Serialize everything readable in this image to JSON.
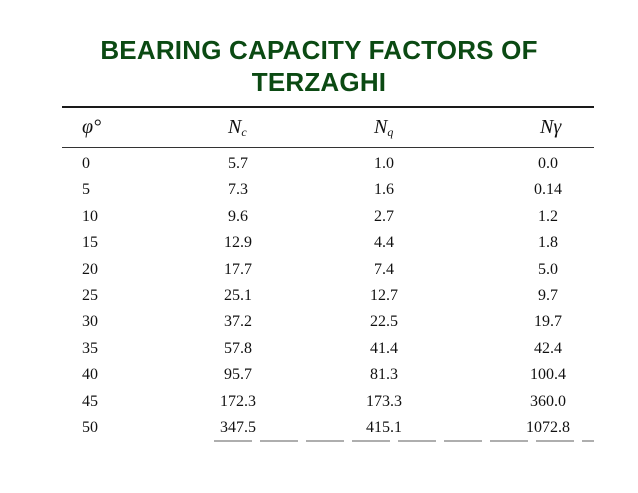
{
  "title": {
    "line1": "BEARING CAPACITY FACTORS OF",
    "line2": "TERZAGHI"
  },
  "table": {
    "headers": {
      "phi": "φ°",
      "nc_main": "N",
      "nc_sub": "c",
      "nq_main": "N",
      "nq_sub": "q",
      "ngamma": "Nγ"
    },
    "rows": [
      [
        "0",
        "5.7",
        "1.0",
        "0.0"
      ],
      [
        "5",
        "7.3",
        "1.6",
        "0.14"
      ],
      [
        "10",
        "9.6",
        "2.7",
        "1.2"
      ],
      [
        "15",
        "12.9",
        "4.4",
        "1.8"
      ],
      [
        "20",
        "17.7",
        "7.4",
        "5.0"
      ],
      [
        "25",
        "25.1",
        "12.7",
        "9.7"
      ],
      [
        "30",
        "37.2",
        "22.5",
        "19.7"
      ],
      [
        "35",
        "57.8",
        "41.4",
        "42.4"
      ],
      [
        "40",
        "95.7",
        "81.3",
        "100.4"
      ],
      [
        "45",
        "172.3",
        "173.3",
        "360.0"
      ],
      [
        "50",
        "347.5",
        "415.1",
        "1072.8"
      ]
    ]
  },
  "colors": {
    "title": "#0b4a13",
    "text": "#111111"
  }
}
